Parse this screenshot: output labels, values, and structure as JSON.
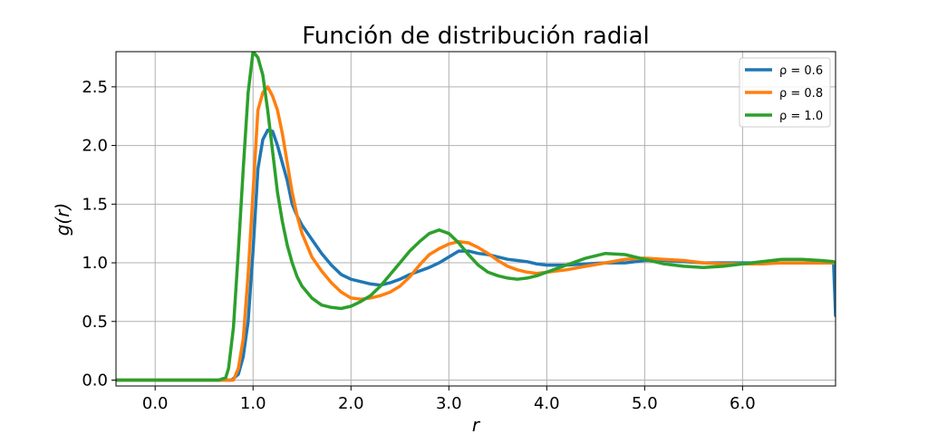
{
  "chart_data": {
    "type": "line",
    "title": "Función de distribución radial",
    "xlabel": "r",
    "ylabel": "g(r)",
    "xlim": [
      -0.4,
      6.95
    ],
    "ylim": [
      -0.05,
      2.8
    ],
    "x_ticks": [
      0.0,
      1.0,
      2.0,
      3.0,
      4.0,
      5.0,
      6.0
    ],
    "x_tick_labels": [
      "0.0",
      "1.0",
      "2.0",
      "3.0",
      "4.0",
      "5.0",
      "6.0"
    ],
    "y_ticks": [
      0.0,
      0.5,
      1.0,
      1.5,
      2.0,
      2.5
    ],
    "y_tick_labels": [
      "0.0",
      "0.5",
      "1.0",
      "1.5",
      "2.0",
      "2.5"
    ],
    "grid": true,
    "legend_position": "top-right",
    "series": [
      {
        "name": "ρ = 0.6",
        "color": "#1f77b4",
        "points": [
          [
            -0.4,
            0.0
          ],
          [
            0.7,
            0.0
          ],
          [
            0.78,
            0.0
          ],
          [
            0.85,
            0.05
          ],
          [
            0.9,
            0.2
          ],
          [
            0.95,
            0.5
          ],
          [
            1.0,
            1.1
          ],
          [
            1.05,
            1.8
          ],
          [
            1.1,
            2.05
          ],
          [
            1.15,
            2.13
          ],
          [
            1.2,
            2.12
          ],
          [
            1.25,
            2.0
          ],
          [
            1.3,
            1.85
          ],
          [
            1.35,
            1.7
          ],
          [
            1.4,
            1.5
          ],
          [
            1.45,
            1.4
          ],
          [
            1.5,
            1.32
          ],
          [
            1.6,
            1.2
          ],
          [
            1.7,
            1.08
          ],
          [
            1.8,
            0.98
          ],
          [
            1.9,
            0.9
          ],
          [
            2.0,
            0.86
          ],
          [
            2.1,
            0.84
          ],
          [
            2.2,
            0.82
          ],
          [
            2.3,
            0.81
          ],
          [
            2.4,
            0.83
          ],
          [
            2.5,
            0.86
          ],
          [
            2.6,
            0.9
          ],
          [
            2.7,
            0.93
          ],
          [
            2.8,
            0.96
          ],
          [
            2.9,
            1.0
          ],
          [
            3.0,
            1.05
          ],
          [
            3.1,
            1.1
          ],
          [
            3.2,
            1.1
          ],
          [
            3.3,
            1.08
          ],
          [
            3.4,
            1.07
          ],
          [
            3.5,
            1.05
          ],
          [
            3.6,
            1.03
          ],
          [
            3.7,
            1.02
          ],
          [
            3.8,
            1.01
          ],
          [
            3.9,
            0.99
          ],
          [
            4.0,
            0.98
          ],
          [
            4.2,
            0.98
          ],
          [
            4.4,
            0.99
          ],
          [
            4.6,
            1.0
          ],
          [
            4.8,
            1.0
          ],
          [
            5.0,
            1.02
          ],
          [
            5.2,
            1.02
          ],
          [
            5.4,
            1.01
          ],
          [
            5.6,
            1.0
          ],
          [
            5.8,
            1.0
          ],
          [
            6.0,
            1.0
          ],
          [
            6.2,
            1.0
          ],
          [
            6.4,
            1.0
          ],
          [
            6.6,
            1.0
          ],
          [
            6.8,
            1.0
          ],
          [
            6.93,
            1.0
          ],
          [
            6.95,
            0.55
          ]
        ]
      },
      {
        "name": "ρ = 0.8",
        "color": "#ff7f0e",
        "points": [
          [
            -0.4,
            0.0
          ],
          [
            0.7,
            0.0
          ],
          [
            0.8,
            0.0
          ],
          [
            0.85,
            0.1
          ],
          [
            0.9,
            0.35
          ],
          [
            0.95,
            0.9
          ],
          [
            1.0,
            1.6
          ],
          [
            1.05,
            2.3
          ],
          [
            1.1,
            2.45
          ],
          [
            1.15,
            2.5
          ],
          [
            1.2,
            2.42
          ],
          [
            1.25,
            2.3
          ],
          [
            1.3,
            2.1
          ],
          [
            1.35,
            1.85
          ],
          [
            1.4,
            1.6
          ],
          [
            1.45,
            1.4
          ],
          [
            1.5,
            1.25
          ],
          [
            1.6,
            1.05
          ],
          [
            1.7,
            0.93
          ],
          [
            1.8,
            0.83
          ],
          [
            1.9,
            0.75
          ],
          [
            2.0,
            0.7
          ],
          [
            2.1,
            0.69
          ],
          [
            2.2,
            0.7
          ],
          [
            2.3,
            0.72
          ],
          [
            2.4,
            0.75
          ],
          [
            2.5,
            0.8
          ],
          [
            2.6,
            0.88
          ],
          [
            2.7,
            0.98
          ],
          [
            2.8,
            1.07
          ],
          [
            2.9,
            1.12
          ],
          [
            3.0,
            1.16
          ],
          [
            3.1,
            1.18
          ],
          [
            3.2,
            1.17
          ],
          [
            3.3,
            1.13
          ],
          [
            3.4,
            1.08
          ],
          [
            3.5,
            1.02
          ],
          [
            3.6,
            0.97
          ],
          [
            3.7,
            0.94
          ],
          [
            3.8,
            0.92
          ],
          [
            3.9,
            0.91
          ],
          [
            4.0,
            0.92
          ],
          [
            4.2,
            0.94
          ],
          [
            4.4,
            0.97
          ],
          [
            4.6,
            1.0
          ],
          [
            4.8,
            1.03
          ],
          [
            5.0,
            1.04
          ],
          [
            5.2,
            1.03
          ],
          [
            5.4,
            1.02
          ],
          [
            5.6,
            1.0
          ],
          [
            5.8,
            0.99
          ],
          [
            6.0,
            0.99
          ],
          [
            6.2,
            0.99
          ],
          [
            6.4,
            1.0
          ],
          [
            6.6,
            1.0
          ],
          [
            6.8,
            1.0
          ],
          [
            6.93,
            1.0
          ],
          [
            6.95,
            1.0
          ]
        ]
      },
      {
        "name": "ρ = 1.0",
        "color": "#2ca02c",
        "points": [
          [
            -0.4,
            0.0
          ],
          [
            0.65,
            0.0
          ],
          [
            0.72,
            0.02
          ],
          [
            0.75,
            0.1
          ],
          [
            0.8,
            0.45
          ],
          [
            0.85,
            1.1
          ],
          [
            0.9,
            1.8
          ],
          [
            0.95,
            2.45
          ],
          [
            1.0,
            2.8
          ],
          [
            1.05,
            2.75
          ],
          [
            1.1,
            2.6
          ],
          [
            1.15,
            2.3
          ],
          [
            1.2,
            1.95
          ],
          [
            1.25,
            1.6
          ],
          [
            1.3,
            1.35
          ],
          [
            1.35,
            1.15
          ],
          [
            1.4,
            1.0
          ],
          [
            1.45,
            0.88
          ],
          [
            1.5,
            0.8
          ],
          [
            1.6,
            0.7
          ],
          [
            1.7,
            0.64
          ],
          [
            1.8,
            0.62
          ],
          [
            1.9,
            0.61
          ],
          [
            2.0,
            0.63
          ],
          [
            2.1,
            0.67
          ],
          [
            2.2,
            0.72
          ],
          [
            2.3,
            0.8
          ],
          [
            2.4,
            0.9
          ],
          [
            2.5,
            1.0
          ],
          [
            2.6,
            1.1
          ],
          [
            2.7,
            1.18
          ],
          [
            2.8,
            1.25
          ],
          [
            2.9,
            1.28
          ],
          [
            3.0,
            1.25
          ],
          [
            3.1,
            1.17
          ],
          [
            3.2,
            1.07
          ],
          [
            3.3,
            0.98
          ],
          [
            3.4,
            0.92
          ],
          [
            3.5,
            0.89
          ],
          [
            3.6,
            0.87
          ],
          [
            3.7,
            0.86
          ],
          [
            3.8,
            0.87
          ],
          [
            3.9,
            0.89
          ],
          [
            4.0,
            0.92
          ],
          [
            4.2,
            0.98
          ],
          [
            4.4,
            1.04
          ],
          [
            4.6,
            1.08
          ],
          [
            4.8,
            1.07
          ],
          [
            5.0,
            1.03
          ],
          [
            5.2,
            0.99
          ],
          [
            5.4,
            0.97
          ],
          [
            5.6,
            0.96
          ],
          [
            5.8,
            0.97
          ],
          [
            6.0,
            0.99
          ],
          [
            6.2,
            1.01
          ],
          [
            6.4,
            1.03
          ],
          [
            6.6,
            1.03
          ],
          [
            6.8,
            1.02
          ],
          [
            6.93,
            1.01
          ],
          [
            6.95,
            1.0
          ]
        ]
      }
    ]
  }
}
